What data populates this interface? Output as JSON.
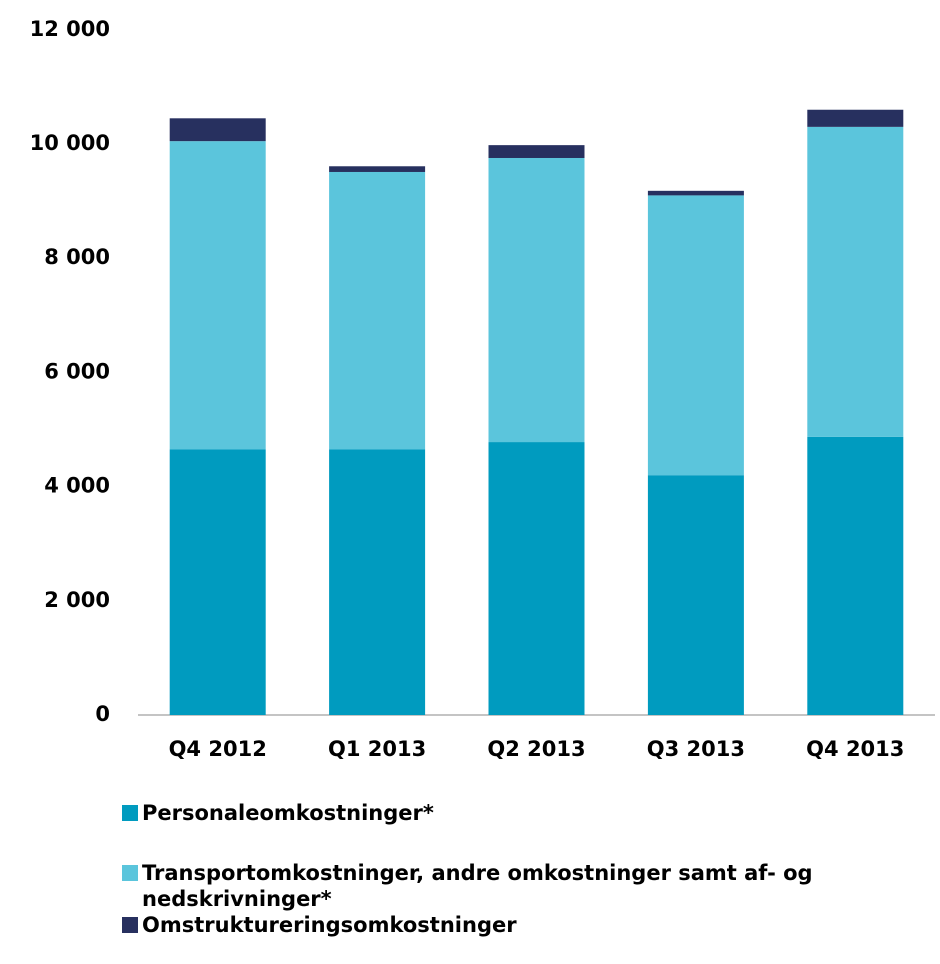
{
  "chart_data": {
    "type": "stacked_bar",
    "categories": [
      "Q4 2012",
      "Q1 2013",
      "Q2 2013",
      "Q3 2013",
      "Q4 2013"
    ],
    "series": [
      {
        "name": "Personaleomkostninger*",
        "color": "#009bbf",
        "values": [
          4650,
          4650,
          4780,
          4200,
          4870
        ]
      },
      {
        "name": "Transportomkostninger, andre omkostninger samt af- og nedskrivninger*",
        "color": "#5bc5dc",
        "values": [
          5400,
          4860,
          4975,
          4900,
          5430
        ]
      },
      {
        "name": "Omstruktureringsomkostninger",
        "color": "#27305f",
        "values": [
          400,
          100,
          225,
          80,
          300
        ]
      }
    ],
    "ylim": [
      0,
      12000
    ],
    "yticks": [
      0,
      {
        "value": 2000,
        "label": "2 000"
      },
      {
        "value": 4000,
        "label": "4 000"
      },
      {
        "value": 6000,
        "label": "6 000"
      },
      {
        "value": 8000,
        "label": "8 000"
      },
      {
        "value": 10000,
        "label": "10 000"
      },
      {
        "value": 12000,
        "label": "12 000"
      }
    ],
    "grid": false,
    "legend": "bottom"
  }
}
